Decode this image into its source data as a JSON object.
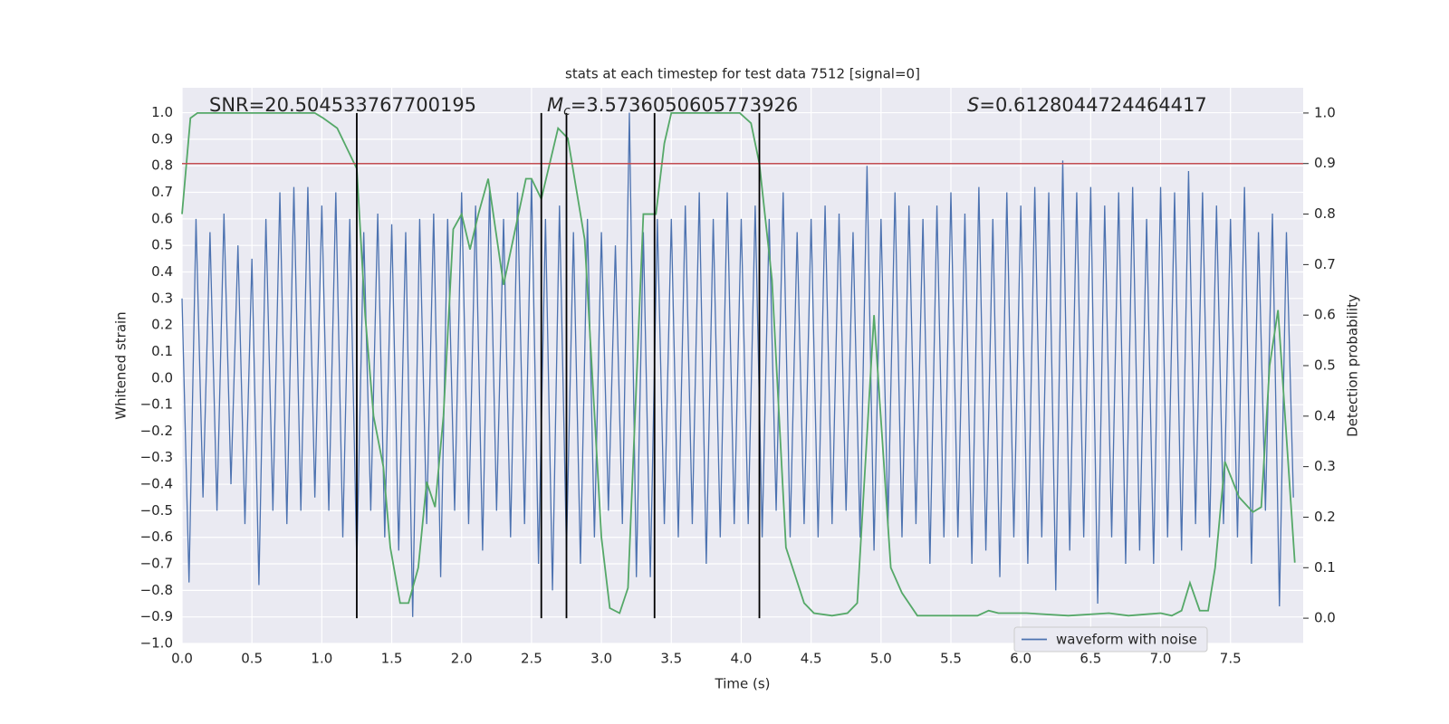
{
  "chart_data": {
    "type": "line",
    "title": "stats at each timestep for test data 7512 [signal=0]",
    "xlabel": "Time (s)",
    "ylabel": "Whitened strain",
    "y2label": "Detection probability",
    "xlim": [
      0,
      8.02
    ],
    "ylim": [
      -1.0,
      1.094
    ],
    "y2lim": [
      -0.05,
      1.05
    ],
    "grid": true,
    "legend": "lower right",
    "xticks": [
      {
        "value": 0,
        "label": "0.0"
      },
      0.5,
      {
        "value": 1,
        "label": "1.0"
      },
      1.5,
      {
        "value": 2,
        "label": "2.0"
      },
      2.5,
      {
        "value": 3,
        "label": "3.0"
      },
      3.5,
      {
        "value": 4,
        "label": "4.0"
      },
      4.5,
      {
        "value": 5,
        "label": "5.0"
      },
      5.5,
      {
        "value": 6,
        "label": "6.0"
      },
      6.5,
      {
        "value": 7,
        "label": "7.0"
      },
      7.5
    ],
    "yticks": [
      {
        "value": -1.0,
        "label": "−1.0"
      },
      {
        "value": -0.9,
        "label": "−0.9"
      },
      {
        "value": -0.8,
        "label": "−0.8"
      },
      {
        "value": -0.7,
        "label": "−0.7"
      },
      {
        "value": -0.6,
        "label": "−0.6"
      },
      {
        "value": -0.5,
        "label": "−0.5"
      },
      {
        "value": -0.4,
        "label": "−0.4"
      },
      {
        "value": -0.3,
        "label": "−0.3"
      },
      {
        "value": -0.2,
        "label": "−0.2"
      },
      {
        "value": -0.1,
        "label": "−0.1"
      },
      {
        "value": 0,
        "label": "0.0"
      },
      0.1,
      0.2,
      0.3,
      0.4,
      0.5,
      0.6,
      0.7,
      0.8,
      0.9,
      {
        "value": 1,
        "label": "1.0"
      }
    ],
    "y2ticks": [
      {
        "value": 0,
        "label": "0.0"
      },
      0.1,
      0.2,
      0.3,
      0.4,
      0.5,
      0.6,
      0.7,
      0.8,
      0.9,
      {
        "value": 1,
        "label": "1.0"
      }
    ],
    "series": [
      {
        "name": "waveform with noise",
        "color": "#4c72b0",
        "x": [
          0,
          0.05,
          0.1,
          0.15,
          0.2,
          0.25,
          0.3,
          0.35,
          0.4,
          0.45,
          0.5,
          0.55,
          0.6,
          0.65,
          0.7,
          0.75,
          0.8,
          0.85,
          0.9,
          0.95,
          1.0,
          1.05,
          1.1,
          1.15,
          1.2,
          1.25,
          1.3,
          1.35,
          1.4,
          1.45,
          1.5,
          1.55,
          1.6,
          1.65,
          1.7,
          1.75,
          1.8,
          1.85,
          1.9,
          1.95,
          2.0,
          2.05,
          2.1,
          2.15,
          2.2,
          2.25,
          2.3,
          2.35,
          2.4,
          2.45,
          2.5,
          2.55,
          2.6,
          2.65,
          2.7,
          2.75,
          2.8,
          2.85,
          2.9,
          2.95,
          3.0,
          3.05,
          3.1,
          3.15,
          3.2,
          3.25,
          3.3,
          3.35,
          3.4,
          3.45,
          3.5,
          3.55,
          3.6,
          3.65,
          3.7,
          3.75,
          3.8,
          3.85,
          3.9,
          3.95,
          4.0,
          4.05,
          4.1,
          4.15,
          4.2,
          4.25,
          4.3,
          4.35,
          4.4,
          4.45,
          4.5,
          4.55,
          4.6,
          4.65,
          4.7,
          4.75,
          4.8,
          4.85,
          4.9,
          4.95,
          5.0,
          5.05,
          5.1,
          5.15,
          5.2,
          5.25,
          5.3,
          5.35,
          5.4,
          5.45,
          5.5,
          5.55,
          5.6,
          5.65,
          5.7,
          5.75,
          5.8,
          5.85,
          5.9,
          5.95,
          6.0,
          6.05,
          6.1,
          6.15,
          6.2,
          6.25,
          6.3,
          6.35,
          6.4,
          6.45,
          6.5,
          6.55,
          6.6,
          6.65,
          6.7,
          6.75,
          6.8,
          6.85,
          6.9,
          6.95,
          7.0,
          7.05,
          7.1,
          7.15,
          7.2,
          7.25,
          7.3,
          7.35,
          7.4,
          7.45,
          7.5,
          7.55,
          7.6,
          7.65,
          7.7,
          7.75,
          7.8,
          7.85,
          7.9,
          7.95
        ],
        "values": [
          0.3,
          -0.77,
          0.6,
          -0.45,
          0.55,
          -0.5,
          0.62,
          -0.4,
          0.5,
          -0.55,
          0.45,
          -0.78,
          0.6,
          -0.5,
          0.7,
          -0.55,
          0.72,
          -0.5,
          0.72,
          -0.45,
          0.65,
          -0.5,
          0.7,
          -0.6,
          0.6,
          -0.7,
          0.55,
          -0.5,
          0.62,
          -0.6,
          0.58,
          -0.65,
          0.55,
          -0.9,
          0.6,
          -0.55,
          0.62,
          -0.75,
          0.6,
          -0.5,
          0.7,
          -0.55,
          0.65,
          -0.65,
          0.72,
          -0.5,
          0.6,
          -0.6,
          0.7,
          -0.55,
          0.75,
          -0.7,
          0.6,
          -0.8,
          0.65,
          -0.65,
          0.55,
          -0.7,
          0.6,
          -0.6,
          0.55,
          -0.5,
          0.5,
          -0.55,
          1.0,
          -0.75,
          0.55,
          -0.75,
          0.6,
          -0.55,
          0.6,
          -0.6,
          0.65,
          -0.55,
          0.7,
          -0.7,
          0.6,
          -0.6,
          0.7,
          -0.55,
          0.6,
          -0.55,
          0.65,
          -0.6,
          0.6,
          -0.5,
          0.7,
          -0.6,
          0.55,
          -0.55,
          0.6,
          -0.6,
          0.65,
          -0.55,
          0.62,
          -0.5,
          0.55,
          -0.6,
          0.8,
          -0.65,
          0.6,
          -0.55,
          0.7,
          -0.6,
          0.65,
          -0.55,
          0.6,
          -0.7,
          0.65,
          -0.6,
          0.7,
          -0.6,
          0.62,
          -0.7,
          0.72,
          -0.65,
          0.6,
          -0.75,
          0.7,
          -0.6,
          0.65,
          -0.7,
          0.72,
          -0.6,
          0.7,
          -0.8,
          0.82,
          -0.65,
          0.7,
          -0.6,
          0.72,
          -0.85,
          0.65,
          -0.6,
          0.7,
          -0.7,
          0.72,
          -0.65,
          0.6,
          -0.7,
          0.72,
          -0.6,
          0.7,
          -0.65,
          0.78,
          -0.55,
          0.7,
          -0.6,
          0.65,
          -0.55,
          0.6,
          -0.6,
          0.72,
          -0.7,
          0.55,
          -0.5,
          0.62,
          -0.86,
          0.55,
          -0.45
        ]
      },
      {
        "color": "#55a868",
        "axis": "y2",
        "x": [
          0,
          0.06,
          0.11,
          0.95,
          1.01,
          1.11,
          1.18,
          1.25,
          1.31,
          1.37,
          1.44,
          1.49,
          1.56,
          1.62,
          1.69,
          1.75,
          1.81,
          1.87,
          1.94,
          2.0,
          2.06,
          2.12,
          2.19,
          2.3,
          2.46,
          2.5,
          2.57,
          2.69,
          2.76,
          2.88,
          3.0,
          3.06,
          3.13,
          3.19,
          3.3,
          3.39,
          3.45,
          3.5,
          3.99,
          4.07,
          4.13,
          4.22,
          4.32,
          4.45,
          4.52,
          4.65,
          4.76,
          4.83,
          4.95,
          5.07,
          5.15,
          5.26,
          5.69,
          5.77,
          5.84,
          6.04,
          6.34,
          6.63,
          6.77,
          7.0,
          7.08,
          7.15,
          7.21,
          7.28,
          7.34,
          7.39,
          7.46,
          7.56,
          7.66,
          7.72,
          7.78,
          7.84,
          7.96
        ],
        "values": [
          0.8,
          0.99,
          1.0,
          1.0,
          0.99,
          0.97,
          0.93,
          0.89,
          0.6,
          0.4,
          0.3,
          0.14,
          0.03,
          0.03,
          0.1,
          0.27,
          0.22,
          0.4,
          0.77,
          0.8,
          0.73,
          0.8,
          0.87,
          0.66,
          0.87,
          0.87,
          0.83,
          0.97,
          0.95,
          0.75,
          0.16,
          0.02,
          0.01,
          0.06,
          0.8,
          0.8,
          0.94,
          1.0,
          1.0,
          0.98,
          0.9,
          0.67,
          0.14,
          0.03,
          0.01,
          0.005,
          0.01,
          0.03,
          0.6,
          0.1,
          0.05,
          0.005,
          0.005,
          0.015,
          0.01,
          0.01,
          0.005,
          0.01,
          0.005,
          0.01,
          0.005,
          0.015,
          0.07,
          0.015,
          0.015,
          0.1,
          0.31,
          0.24,
          0.21,
          0.22,
          0.5,
          0.61,
          0.11
        ]
      }
    ],
    "vlines": {
      "x": [
        1.25,
        2.57,
        2.75,
        3.38,
        4.13
      ],
      "ymin": 0,
      "ymax": 1,
      "axis": "y2",
      "color": "#000000"
    },
    "hline": {
      "y": 0.9,
      "axis": "y2",
      "color": "#c44e52"
    },
    "annotations": [
      {
        "text": "SNR=20.504533767700195"
      },
      {
        "symbol": "M",
        "subscript": "c",
        "text": "=3.5736050605773926"
      },
      {
        "symbol": "S",
        "text": "=0.6128044724464417"
      }
    ]
  }
}
